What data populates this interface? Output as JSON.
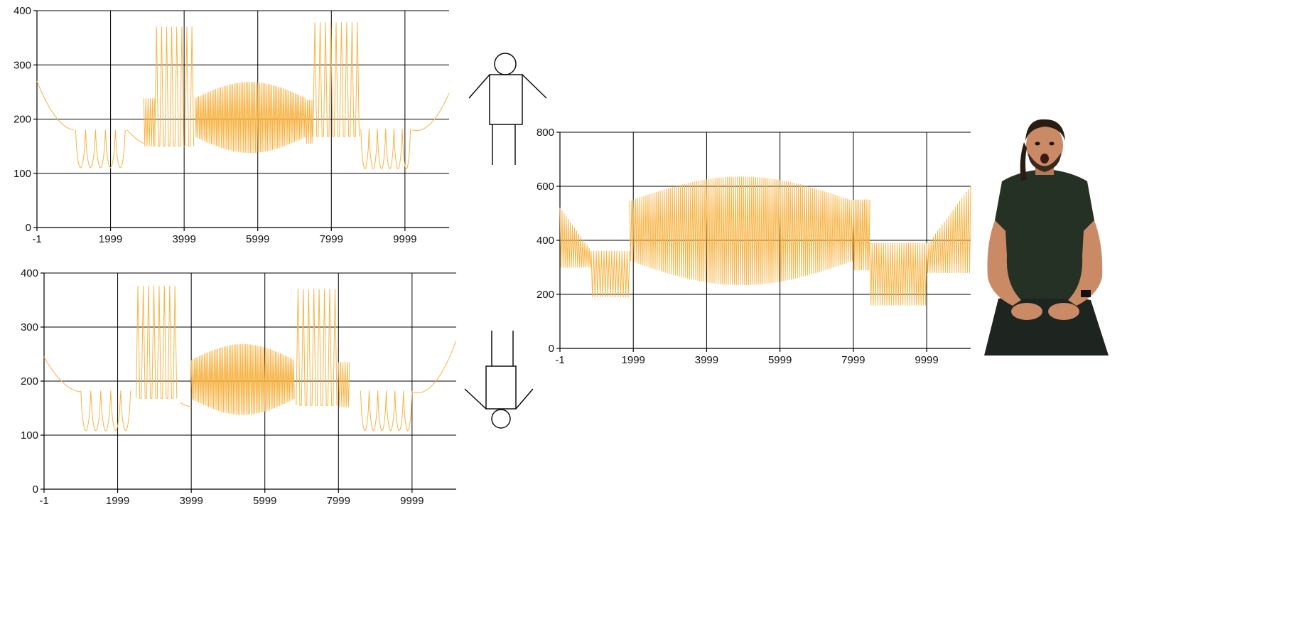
{
  "style": {
    "series_color": "#F7B445",
    "grid_color": "#000000",
    "skin": "#C98A65",
    "shirt": "#263126",
    "hair": "#2A1C12"
  },
  "chart_data": [
    {
      "id": "top-left",
      "type": "line",
      "title": "",
      "xlabel": "",
      "ylabel": "",
      "xlim": [
        -1,
        11199
      ],
      "ylim": [
        0,
        400
      ],
      "x_ticks": [
        -1,
        1999,
        3999,
        5999,
        7999,
        9999
      ],
      "x_tick_labels": [
        "-1",
        "1999",
        "3999",
        "5999",
        "7999",
        "9999"
      ],
      "y_ticks": [
        0,
        100,
        200,
        300,
        400
      ],
      "y_tick_labels": [
        "0",
        "100",
        "200",
        "300",
        "400"
      ],
      "grid": true,
      "legend": "none",
      "series": [
        {
          "description_values": "dense oscillating trace",
          "segments": [
            {
              "kind": "curve",
              "x0": -1,
              "x1": 1000,
              "y0": 270,
              "y1": 180,
              "ymid": 205
            },
            {
              "kind": "vdips",
              "x0": 1050,
              "x1": 2400,
              "upper": 180,
              "lower": 110,
              "count": 5
            },
            {
              "kind": "curve",
              "x0": 2450,
              "x1": 2900,
              "y0": 180,
              "y1": 155,
              "ymid": 165
            },
            {
              "kind": "dense",
              "x0": 2900,
              "x1": 3200,
              "upper": 238,
              "lower": 150,
              "shape": "flat",
              "count": 10
            },
            {
              "kind": "spikes",
              "x0": 3200,
              "x1": 4300,
              "upper": 370,
              "lower": 150,
              "count": 8
            },
            {
              "kind": "dense",
              "x0": 4300,
              "x1": 7300,
              "upper": 268,
              "lower": 138,
              "shape": "dome",
              "count": 130
            },
            {
              "kind": "dense",
              "x0": 7300,
              "x1": 7500,
              "upper": 235,
              "lower": 155,
              "shape": "flat",
              "count": 8
            },
            {
              "kind": "spikes",
              "x0": 7500,
              "x1": 8800,
              "upper": 378,
              "lower": 168,
              "count": 9
            },
            {
              "kind": "vdips",
              "x0": 8800,
              "x1": 10150,
              "upper": 182,
              "lower": 108,
              "count": 6
            },
            {
              "kind": "curve",
              "x0": 10200,
              "x1": 11199,
              "y0": 180,
              "y1": 248,
              "ymid": 192
            }
          ]
        }
      ]
    },
    {
      "id": "bottom-left",
      "type": "line",
      "title": "",
      "xlabel": "",
      "ylabel": "",
      "xlim": [
        -1,
        11199
      ],
      "ylim": [
        0,
        400
      ],
      "x_ticks": [
        -1,
        1999,
        3999,
        5999,
        7999,
        9999
      ],
      "x_tick_labels": [
        "-1",
        "1999",
        "3999",
        "5999",
        "7999",
        "9999"
      ],
      "y_ticks": [
        0,
        100,
        200,
        300,
        400
      ],
      "y_tick_labels": [
        "0",
        "100",
        "200",
        "300",
        "400"
      ],
      "grid": true,
      "legend": "none",
      "series": [
        {
          "segments": [
            {
              "kind": "curve",
              "x0": -1,
              "x1": 1000,
              "y0": 245,
              "y1": 180,
              "ymid": 198
            },
            {
              "kind": "vdips",
              "x0": 1000,
              "x1": 2350,
              "upper": 182,
              "lower": 108,
              "count": 5
            },
            {
              "kind": "spikes",
              "x0": 2500,
              "x1": 3650,
              "upper": 376,
              "lower": 168,
              "count": 8
            },
            {
              "kind": "curve",
              "x0": 3700,
              "x1": 3999,
              "y0": 160,
              "y1": 152,
              "ymid": 155
            },
            {
              "kind": "dense",
              "x0": 3999,
              "x1": 6800,
              "upper": 268,
              "lower": 138,
              "shape": "dome",
              "count": 125
            },
            {
              "kind": "spikes",
              "x0": 6850,
              "x1": 7999,
              "upper": 370,
              "lower": 155,
              "count": 8
            },
            {
              "kind": "dense",
              "x0": 7999,
              "x1": 8300,
              "upper": 235,
              "lower": 152,
              "shape": "flat",
              "count": 10
            },
            {
              "kind": "vdips",
              "x0": 8600,
              "x1": 9999,
              "upper": 182,
              "lower": 108,
              "count": 6
            },
            {
              "kind": "curve",
              "x0": 9999,
              "x1": 11199,
              "y0": 180,
              "y1": 275,
              "ymid": 196
            }
          ]
        }
      ]
    },
    {
      "id": "right",
      "type": "line",
      "title": "",
      "xlabel": "",
      "ylabel": "",
      "xlim": [
        -1,
        11199
      ],
      "ylim": [
        0,
        800
      ],
      "x_ticks": [
        -1,
        1999,
        3999,
        5999,
        7999,
        9999
      ],
      "x_tick_labels": [
        "-1",
        "1999",
        "3999",
        "5999",
        "7999",
        "9999"
      ],
      "y_ticks": [
        0,
        200,
        400,
        600,
        800
      ],
      "y_tick_labels": [
        "0",
        "200",
        "400",
        "600",
        "800"
      ],
      "grid": true,
      "legend": "none",
      "series": [
        {
          "segments": [
            {
              "kind": "dense",
              "x0": -1,
              "x1": 850,
              "upper": 520,
              "lower": 300,
              "shape": "fallA",
              "count": 30
            },
            {
              "kind": "dense",
              "x0": 850,
              "x1": 1900,
              "upper": 360,
              "lower": 190,
              "shape": "flat",
              "count": 30
            },
            {
              "kind": "dense",
              "x0": 1900,
              "x1": 7999,
              "upper": 635,
              "lower": 235,
              "shape": "dome",
              "count": 220
            },
            {
              "kind": "dense",
              "x0": 7999,
              "x1": 8450,
              "upper": 550,
              "lower": 290,
              "shape": "flat",
              "count": 18
            },
            {
              "kind": "dense",
              "x0": 8450,
              "x1": 10000,
              "upper": 390,
              "lower": 160,
              "shape": "flat",
              "count": 50
            },
            {
              "kind": "dense",
              "x0": 10000,
              "x1": 11199,
              "upper": 600,
              "lower": 280,
              "shape": "riseA",
              "count": 40
            }
          ]
        }
      ]
    }
  ],
  "figures": {
    "upright": {
      "name": "stick-figure-upright"
    },
    "inverted": {
      "name": "stick-figure-inverted"
    }
  },
  "photo": {
    "name": "person-photo"
  }
}
